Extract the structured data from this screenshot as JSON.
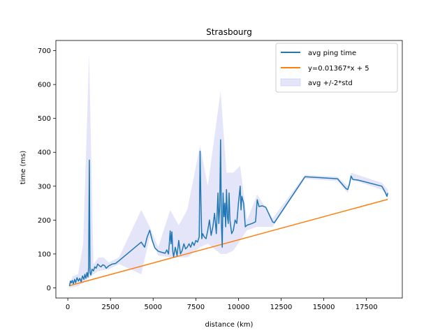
{
  "chart_data": {
    "type": "line",
    "title": "Strasbourg",
    "xlabel": "distance (km)",
    "ylabel": "time (ms)",
    "xlim": [
      -700,
      19600
    ],
    "ylim": [
      -30,
      730
    ],
    "xticks": [
      0,
      2500,
      5000,
      7500,
      10000,
      12500,
      15000,
      17500
    ],
    "yticks": [
      0,
      100,
      200,
      300,
      400,
      500,
      600,
      700
    ],
    "grid": false,
    "legend_position": "top-right",
    "series": [
      {
        "name": "avg ping time",
        "kind": "line",
        "color": "#1f77b4",
        "points": [
          [
            100,
            5
          ],
          [
            150,
            20
          ],
          [
            200,
            15
          ],
          [
            260,
            22
          ],
          [
            320,
            12
          ],
          [
            400,
            25
          ],
          [
            460,
            15
          ],
          [
            540,
            30
          ],
          [
            620,
            20
          ],
          [
            700,
            28
          ],
          [
            780,
            18
          ],
          [
            860,
            35
          ],
          [
            940,
            25
          ],
          [
            1000,
            40
          ],
          [
            1060,
            28
          ],
          [
            1120,
            45
          ],
          [
            1180,
            32
          ],
          [
            1220,
            60
          ],
          [
            1260,
            377
          ],
          [
            1300,
            45
          ],
          [
            1350,
            38
          ],
          [
            1420,
            55
          ],
          [
            1500,
            50
          ],
          [
            1580,
            62
          ],
          [
            1660,
            58
          ],
          [
            1750,
            70
          ],
          [
            1850,
            65
          ],
          [
            1950,
            62
          ],
          [
            2050,
            68
          ],
          [
            2150,
            66
          ],
          [
            2250,
            58
          ],
          [
            2400,
            65
          ],
          [
            2600,
            70
          ],
          [
            2800,
            72
          ],
          [
            3000,
            80
          ],
          [
            4300,
            135
          ],
          [
            4500,
            120
          ],
          [
            4650,
            150
          ],
          [
            4800,
            170
          ],
          [
            4950,
            140
          ],
          [
            5100,
            118
          ],
          [
            5300,
            108
          ],
          [
            5500,
            105
          ],
          [
            5700,
            102
          ],
          [
            5800,
            112
          ],
          [
            5900,
            100
          ],
          [
            6000,
            168
          ],
          [
            6050,
            130
          ],
          [
            6100,
            165
          ],
          [
            6150,
            108
          ],
          [
            6200,
            92
          ],
          [
            6300,
            120
          ],
          [
            6400,
            95
          ],
          [
            6500,
            140
          ],
          [
            6600,
            100
          ],
          [
            6700,
            110
          ],
          [
            6800,
            130
          ],
          [
            6900,
            115
          ],
          [
            7000,
            120
          ],
          [
            7100,
            130
          ],
          [
            7200,
            120
          ],
          [
            7300,
            135
          ],
          [
            7400,
            125
          ],
          [
            7500,
            140
          ],
          [
            7600,
            135
          ],
          [
            7700,
            150
          ],
          [
            7750,
            403
          ],
          [
            7800,
            250
          ],
          [
            7850,
            145
          ],
          [
            7900,
            160
          ],
          [
            8000,
            150
          ],
          [
            8100,
            145
          ],
          [
            8200,
            170
          ],
          [
            8300,
            200
          ],
          [
            8400,
            155
          ],
          [
            8500,
            180
          ],
          [
            8600,
            220
          ],
          [
            8700,
            160
          ],
          [
            8800,
            280
          ],
          [
            8850,
            190
          ],
          [
            8900,
            240
          ],
          [
            8950,
            437
          ],
          [
            9000,
            190
          ],
          [
            9050,
            120
          ],
          [
            9100,
            280
          ],
          [
            9150,
            210
          ],
          [
            9200,
            250
          ],
          [
            9250,
            180
          ],
          [
            9300,
            290
          ],
          [
            9350,
            210
          ],
          [
            9400,
            190
          ],
          [
            9450,
            280
          ],
          [
            9500,
            200
          ],
          [
            9600,
            160
          ],
          [
            9700,
            170
          ],
          [
            9800,
            200
          ],
          [
            9900,
            190
          ],
          [
            10000,
            250
          ],
          [
            10100,
            300
          ],
          [
            10150,
            230
          ],
          [
            10200,
            270
          ],
          [
            10300,
            250
          ],
          [
            10400,
            180
          ],
          [
            10500,
            185
          ],
          [
            10800,
            190
          ],
          [
            11000,
            195
          ],
          [
            11100,
            260
          ],
          [
            11200,
            240
          ],
          [
            11400,
            242
          ],
          [
            11600,
            238
          ],
          [
            12000,
            195
          ],
          [
            12100,
            192
          ],
          [
            13900,
            328
          ],
          [
            15800,
            322
          ],
          [
            16300,
            293
          ],
          [
            16400,
            290
          ],
          [
            16500,
            305
          ],
          [
            16600,
            330
          ],
          [
            16700,
            320
          ],
          [
            17000,
            318
          ],
          [
            18400,
            300
          ],
          [
            18600,
            282
          ],
          [
            18700,
            270
          ],
          [
            18750,
            280
          ]
        ]
      },
      {
        "name": "y=0.01367*x + 5",
        "kind": "line",
        "color": "#ff7f0e",
        "points": [
          [
            100,
            6.4
          ],
          [
            18750,
            261.3
          ]
        ]
      },
      {
        "name": "avg +/-2*std",
        "kind": "band",
        "color": "#aaaaee",
        "points": [
          [
            100,
            0,
            12
          ],
          [
            300,
            2,
            35
          ],
          [
            600,
            5,
            40
          ],
          [
            900,
            15,
            130
          ],
          [
            1250,
            30,
            690
          ],
          [
            1500,
            40,
            70
          ],
          [
            1800,
            50,
            90
          ],
          [
            2100,
            52,
            90
          ],
          [
            2400,
            55,
            75
          ],
          [
            3000,
            70,
            90
          ],
          [
            4300,
            40,
            230
          ],
          [
            4800,
            150,
            180
          ],
          [
            5300,
            95,
            120
          ],
          [
            6000,
            90,
            230
          ],
          [
            6500,
            90,
            185
          ],
          [
            7000,
            90,
            230
          ],
          [
            7750,
            120,
            420
          ],
          [
            8200,
            130,
            300
          ],
          [
            8950,
            100,
            580
          ],
          [
            9300,
            100,
            340
          ],
          [
            9700,
            110,
            340
          ],
          [
            10100,
            140,
            360
          ],
          [
            10500,
            170,
            200
          ],
          [
            11100,
            180,
            275
          ],
          [
            12000,
            180,
            205
          ],
          [
            13900,
            322,
            333
          ],
          [
            15800,
            315,
            328
          ],
          [
            16400,
            280,
            300
          ],
          [
            16600,
            320,
            340
          ],
          [
            18400,
            290,
            310
          ],
          [
            18750,
            265,
            290
          ]
        ]
      }
    ]
  }
}
